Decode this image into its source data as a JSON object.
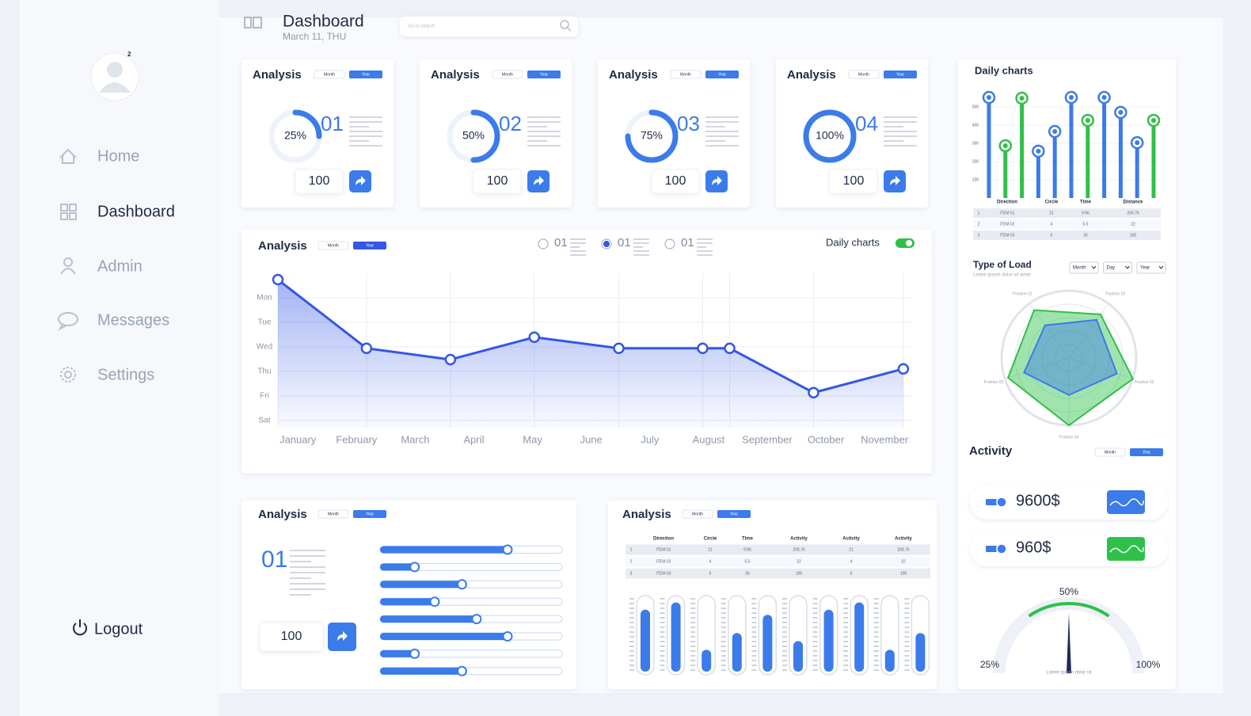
{
  "sidebar": {
    "badge": "2",
    "menu": [
      "Home",
      "Dashboard",
      "Admin",
      "Messages",
      "Settings"
    ],
    "active_item": 1,
    "logout": "Logout"
  },
  "header": {
    "title": "Dashboard",
    "date": "March 11, THU",
    "search_placeholder": "Go to search"
  },
  "toggle": [
    "Month",
    "Year"
  ],
  "activity": {
    "title": "Activity",
    "amounts": [
      "9600$",
      "960$"
    ],
    "colors": [
      "#3b7bea",
      "#2fc04a"
    ]
  },
  "chart_data": [
    {
      "type": "donut",
      "title": "Analysis",
      "values": [
        25,
        50,
        75,
        100
      ],
      "value_labels": [
        "25%",
        "50%",
        "75%",
        "100%"
      ],
      "indices": [
        "01",
        "02",
        "03",
        "04"
      ],
      "amounts": [
        100,
        100,
        100,
        100
      ],
      "color": "#3b7bea"
    },
    {
      "type": "line",
      "title": "Analysis",
      "legend": [
        "01",
        "01",
        "01"
      ],
      "legend_selected": 1,
      "switch_label": "Daily charts",
      "categories": [
        "January",
        "February",
        "March",
        "April",
        "May",
        "June",
        "July",
        "August",
        "September",
        "October",
        "November"
      ],
      "y_categories": [
        "Mon",
        "Tue",
        "Wed",
        "Thu",
        "Fri",
        "Sat"
      ],
      "x": [
        -0.34,
        1.17,
        2.6,
        4.03,
        5.47,
        6.9,
        7.36,
        8.79,
        10.32
      ],
      "values": [
        -0.74,
        2.06,
        2.52,
        1.61,
        2.06,
        2.06,
        2.06,
        3.87,
        2.9
      ],
      "xlim": [
        -0.34,
        10.47
      ],
      "ylim": [
        -1,
        5.3
      ],
      "color": "#3457e6",
      "grid": true
    },
    {
      "type": "lollipop",
      "title": "Daily charts",
      "values": [
        552,
        287,
        548,
        257,
        365,
        552,
        426,
        552,
        470,
        304,
        426
      ],
      "colors": [
        "#3b7bea",
        "#2fc04a",
        "#2fc04a",
        "#3b7bea",
        "#3b7bea",
        "#3b7bea",
        "#2fc04a",
        "#3b7bea",
        "#3b7bea",
        "#3b7bea",
        "#2fc04a"
      ],
      "ylim": [
        0,
        600
      ],
      "yticks": [
        100,
        200,
        300,
        400,
        500
      ],
      "grid": true,
      "table": {
        "header": [
          "Direction",
          "Circle",
          "Time",
          "Distance"
        ],
        "rows": [
          [
            "1",
            "ITEM 01",
            "21",
            "9:96",
            "209.76"
          ],
          [
            "2",
            "ITEM 02",
            "4",
            "5.5",
            "22"
          ],
          [
            "3",
            "ITEM 03",
            "5",
            "26",
            "100"
          ]
        ]
      }
    },
    {
      "type": "radar",
      "title": "Type of Load",
      "subtitle": "Lorem ipsum dolor sit amet",
      "selects": [
        "Month",
        "Day",
        "Year"
      ],
      "axes": [
        "Position 01",
        "Position 02",
        "Position 03",
        "Position 04",
        "Position 05"
      ],
      "rlim": [
        0,
        100
      ],
      "series": [
        {
          "color": "#2fc04a",
          "values": [
            88,
            80,
            100,
            100,
            95
          ]
        },
        {
          "color": "#3b7bea",
          "values": [
            60,
            70,
            75,
            55,
            70
          ]
        }
      ]
    },
    {
      "type": "gauge",
      "values": [
        50
      ],
      "ticks": [
        {
          "value": 25,
          "label": "25%"
        },
        {
          "value": 50,
          "label": "50%"
        },
        {
          "value": 100,
          "label": "100%"
        }
      ],
      "caption": "Lorem ipsum dolor sit",
      "color": "#2fc04a"
    },
    {
      "type": "slider",
      "title": "Analysis",
      "index": "01",
      "amount": 100,
      "values": [
        70,
        19,
        45,
        30,
        53,
        70,
        19,
        45
      ],
      "xlim": [
        0,
        100
      ],
      "color": "#3b7bea"
    },
    {
      "type": "level",
      "title": "Analysis",
      "values": [
        85,
        95,
        30,
        53,
        78,
        42,
        85,
        95,
        30,
        53
      ],
      "ylim": [
        0,
        100
      ],
      "color": "#3b7bea",
      "table": {
        "header": [
          "Direction",
          "Circle",
          "Time",
          "Activity",
          "Activity",
          "Activity"
        ],
        "rows": [
          [
            "1",
            "ITEM 01",
            "21",
            "9:96",
            "209.76",
            "21",
            "209.76"
          ],
          [
            "2",
            "ITEM 02",
            "4",
            "5.5",
            "22",
            "4",
            "22"
          ],
          [
            "3",
            "ITEM 03",
            "5",
            "26",
            "100",
            "5",
            "100"
          ]
        ]
      }
    }
  ]
}
